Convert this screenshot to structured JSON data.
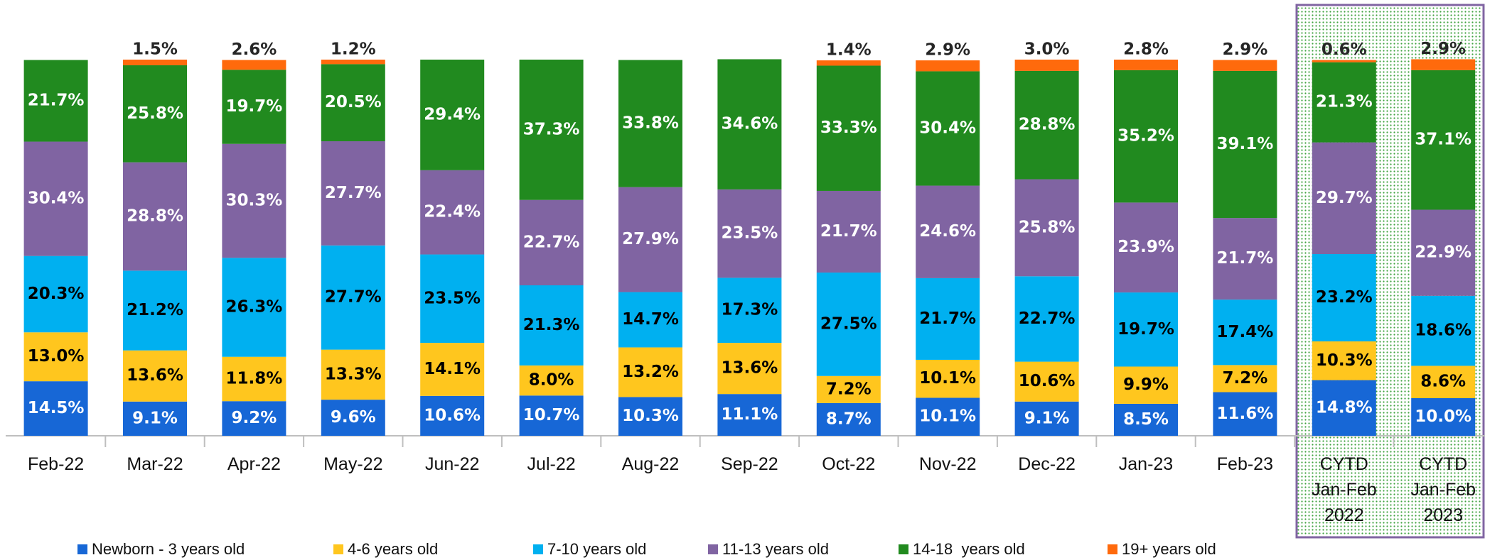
{
  "chart_data": {
    "type": "stacked_bar",
    "categories": [
      "Feb-22",
      "Mar-22",
      "Apr-22",
      "May-22",
      "Jun-22",
      "Jul-22",
      "Aug-22",
      "Sep-22",
      "Oct-22",
      "Nov-22",
      "Dec-22",
      "Jan-23",
      "Feb-23",
      "CYTD\nJan-Feb\n2022",
      "CYTD\nJan-Feb\n2023"
    ],
    "ylim": [
      0,
      100
    ],
    "series": [
      {
        "name": "Newborn - 3 years old",
        "color": "#1767d6",
        "label_color": "#ffffff",
        "values": [
          14.5,
          9.1,
          9.2,
          9.6,
          10.6,
          10.7,
          10.3,
          11.1,
          8.7,
          10.1,
          9.1,
          8.5,
          11.6,
          14.8,
          10.0
        ],
        "value_labels": [
          "14.5%",
          "9.1%",
          "9.2%",
          "9.6%",
          "10.6%",
          "10.7%",
          "10.3%",
          "11.1%",
          "8.7%",
          "10.1%",
          "9.1%",
          "8.5%",
          "11.6%",
          "14.8%",
          "10.0%"
        ]
      },
      {
        "name": "4-6 years old",
        "color": "#ffc61e",
        "label_color": "#000000",
        "values": [
          13.0,
          13.6,
          11.8,
          13.3,
          14.1,
          8.0,
          13.2,
          13.6,
          7.2,
          10.1,
          10.6,
          9.9,
          7.2,
          10.3,
          8.6
        ],
        "value_labels": [
          "13.0%",
          "13.6%",
          "11.8%",
          "13.3%",
          "14.1%",
          "8.0%",
          "13.2%",
          "13.6%",
          "7.2%",
          "10.1%",
          "10.6%",
          "9.9%",
          "7.2%",
          "10.3%",
          "8.6%"
        ]
      },
      {
        "name": "7-10 years old",
        "color": "#00b0f0",
        "label_color": "#000000",
        "values": [
          20.3,
          21.2,
          26.3,
          27.7,
          23.5,
          21.3,
          14.7,
          17.3,
          27.5,
          21.7,
          22.7,
          19.7,
          17.4,
          23.2,
          18.6
        ],
        "value_labels": [
          "20.3%",
          "21.2%",
          "26.3%",
          "27.7%",
          "23.5%",
          "21.3%",
          "14.7%",
          "17.3%",
          "27.5%",
          "21.7%",
          "22.7%",
          "19.7%",
          "17.4%",
          "23.2%",
          "18.6%"
        ]
      },
      {
        "name": "11-13 years old",
        "color": "#8064a2",
        "label_color": "#ffffff",
        "values": [
          30.4,
          28.8,
          30.3,
          27.7,
          22.4,
          22.7,
          27.9,
          23.5,
          21.7,
          24.6,
          25.8,
          23.9,
          21.7,
          29.7,
          22.9
        ],
        "value_labels": [
          "30.4%",
          "28.8%",
          "30.3%",
          "27.7%",
          "22.4%",
          "22.7%",
          "27.9%",
          "23.5%",
          "21.7%",
          "24.6%",
          "25.8%",
          "23.9%",
          "21.7%",
          "29.7%",
          "22.9%"
        ]
      },
      {
        "name": "14-18  years old",
        "color": "#218a1f",
        "label_color": "#ffffff",
        "values": [
          21.7,
          25.8,
          19.7,
          20.5,
          29.4,
          37.3,
          33.8,
          34.6,
          33.3,
          30.4,
          28.8,
          35.2,
          39.1,
          21.3,
          37.1
        ],
        "value_labels": [
          "21.7%",
          "25.8%",
          "19.7%",
          "20.5%",
          "29.4%",
          "37.3%",
          "33.8%",
          "34.6%",
          "33.3%",
          "30.4%",
          "28.8%",
          "35.2%",
          "39.1%",
          "21.3%",
          "37.1%"
        ]
      },
      {
        "name": "19+ years old",
        "color": "#ff6a0c",
        "label_color": "#262626",
        "label_outside": true,
        "values": [
          null,
          1.5,
          2.6,
          1.2,
          null,
          null,
          null,
          null,
          1.4,
          2.9,
          3.0,
          2.8,
          2.9,
          0.6,
          2.9
        ],
        "value_labels": [
          null,
          "1.5%",
          "2.6%",
          "1.2%",
          null,
          null,
          null,
          null,
          "1.4%",
          "2.9%",
          "3.0%",
          "2.8%",
          "2.9%",
          "0.6%",
          "2.9%"
        ]
      }
    ]
  }
}
